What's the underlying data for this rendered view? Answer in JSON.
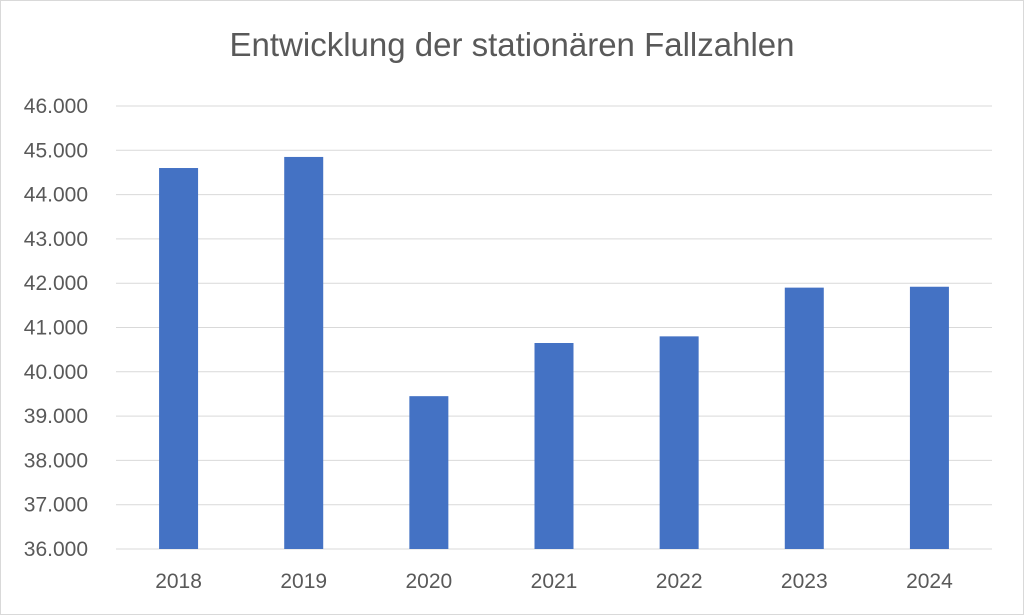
{
  "chart_data": {
    "type": "bar",
    "title": "Entwicklung der stationären Fallzahlen",
    "xlabel": "",
    "ylabel": "",
    "categories": [
      "2018",
      "2019",
      "2020",
      "2021",
      "2022",
      "2023",
      "2024"
    ],
    "values": [
      44600,
      44850,
      39450,
      40650,
      40800,
      41900,
      41920
    ],
    "ylim": [
      36000,
      46000
    ],
    "yticks": [
      36000,
      37000,
      38000,
      39000,
      40000,
      41000,
      42000,
      43000,
      44000,
      45000,
      46000
    ],
    "ytick_labels": [
      "36.000",
      "37.000",
      "38.000",
      "39.000",
      "40.000",
      "41.000",
      "42.000",
      "43.000",
      "44.000",
      "45.000",
      "46.000"
    ],
    "grid": true,
    "legend": "none",
    "colors": {
      "bar": "#4472c4",
      "grid": "#d9d9d9",
      "text": "#595959"
    }
  }
}
